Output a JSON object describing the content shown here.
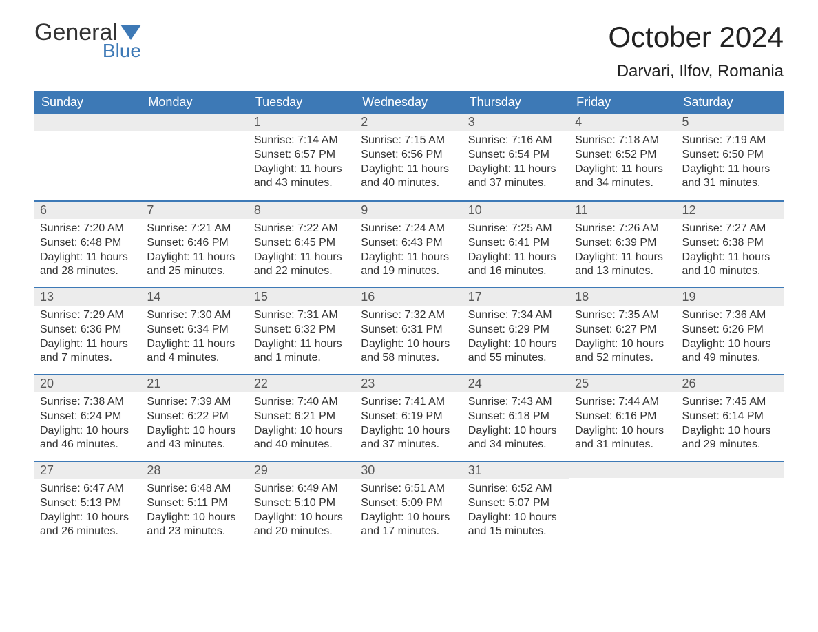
{
  "logo": {
    "top": "General",
    "bottom": "Blue",
    "accent_color": "#3d79b6"
  },
  "title": "October 2024",
  "location": "Darvari, Ilfov, Romania",
  "colors": {
    "header_bg": "#3d79b6",
    "header_text": "#ffffff",
    "daynum_bg": "#ececec",
    "border_top": "#3d79b6",
    "body_text": "#333333",
    "page_bg": "#ffffff"
  },
  "weekdays": [
    "Sunday",
    "Monday",
    "Tuesday",
    "Wednesday",
    "Thursday",
    "Friday",
    "Saturday"
  ],
  "labels": {
    "sunrise": "Sunrise:",
    "sunset": "Sunset:",
    "daylight": "Daylight:"
  },
  "weeks": [
    [
      null,
      null,
      {
        "n": "1",
        "sunrise": "7:14 AM",
        "sunset": "6:57 PM",
        "daylight": "11 hours and 43 minutes."
      },
      {
        "n": "2",
        "sunrise": "7:15 AM",
        "sunset": "6:56 PM",
        "daylight": "11 hours and 40 minutes."
      },
      {
        "n": "3",
        "sunrise": "7:16 AM",
        "sunset": "6:54 PM",
        "daylight": "11 hours and 37 minutes."
      },
      {
        "n": "4",
        "sunrise": "7:18 AM",
        "sunset": "6:52 PM",
        "daylight": "11 hours and 34 minutes."
      },
      {
        "n": "5",
        "sunrise": "7:19 AM",
        "sunset": "6:50 PM",
        "daylight": "11 hours and 31 minutes."
      }
    ],
    [
      {
        "n": "6",
        "sunrise": "7:20 AM",
        "sunset": "6:48 PM",
        "daylight": "11 hours and 28 minutes."
      },
      {
        "n": "7",
        "sunrise": "7:21 AM",
        "sunset": "6:46 PM",
        "daylight": "11 hours and 25 minutes."
      },
      {
        "n": "8",
        "sunrise": "7:22 AM",
        "sunset": "6:45 PM",
        "daylight": "11 hours and 22 minutes."
      },
      {
        "n": "9",
        "sunrise": "7:24 AM",
        "sunset": "6:43 PM",
        "daylight": "11 hours and 19 minutes."
      },
      {
        "n": "10",
        "sunrise": "7:25 AM",
        "sunset": "6:41 PM",
        "daylight": "11 hours and 16 minutes."
      },
      {
        "n": "11",
        "sunrise": "7:26 AM",
        "sunset": "6:39 PM",
        "daylight": "11 hours and 13 minutes."
      },
      {
        "n": "12",
        "sunrise": "7:27 AM",
        "sunset": "6:38 PM",
        "daylight": "11 hours and 10 minutes."
      }
    ],
    [
      {
        "n": "13",
        "sunrise": "7:29 AM",
        "sunset": "6:36 PM",
        "daylight": "11 hours and 7 minutes."
      },
      {
        "n": "14",
        "sunrise": "7:30 AM",
        "sunset": "6:34 PM",
        "daylight": "11 hours and 4 minutes."
      },
      {
        "n": "15",
        "sunrise": "7:31 AM",
        "sunset": "6:32 PM",
        "daylight": "11 hours and 1 minute."
      },
      {
        "n": "16",
        "sunrise": "7:32 AM",
        "sunset": "6:31 PM",
        "daylight": "10 hours and 58 minutes."
      },
      {
        "n": "17",
        "sunrise": "7:34 AM",
        "sunset": "6:29 PM",
        "daylight": "10 hours and 55 minutes."
      },
      {
        "n": "18",
        "sunrise": "7:35 AM",
        "sunset": "6:27 PM",
        "daylight": "10 hours and 52 minutes."
      },
      {
        "n": "19",
        "sunrise": "7:36 AM",
        "sunset": "6:26 PM",
        "daylight": "10 hours and 49 minutes."
      }
    ],
    [
      {
        "n": "20",
        "sunrise": "7:38 AM",
        "sunset": "6:24 PM",
        "daylight": "10 hours and 46 minutes."
      },
      {
        "n": "21",
        "sunrise": "7:39 AM",
        "sunset": "6:22 PM",
        "daylight": "10 hours and 43 minutes."
      },
      {
        "n": "22",
        "sunrise": "7:40 AM",
        "sunset": "6:21 PM",
        "daylight": "10 hours and 40 minutes."
      },
      {
        "n": "23",
        "sunrise": "7:41 AM",
        "sunset": "6:19 PM",
        "daylight": "10 hours and 37 minutes."
      },
      {
        "n": "24",
        "sunrise": "7:43 AM",
        "sunset": "6:18 PM",
        "daylight": "10 hours and 34 minutes."
      },
      {
        "n": "25",
        "sunrise": "7:44 AM",
        "sunset": "6:16 PM",
        "daylight": "10 hours and 31 minutes."
      },
      {
        "n": "26",
        "sunrise": "7:45 AM",
        "sunset": "6:14 PM",
        "daylight": "10 hours and 29 minutes."
      }
    ],
    [
      {
        "n": "27",
        "sunrise": "6:47 AM",
        "sunset": "5:13 PM",
        "daylight": "10 hours and 26 minutes."
      },
      {
        "n": "28",
        "sunrise": "6:48 AM",
        "sunset": "5:11 PM",
        "daylight": "10 hours and 23 minutes."
      },
      {
        "n": "29",
        "sunrise": "6:49 AM",
        "sunset": "5:10 PM",
        "daylight": "10 hours and 20 minutes."
      },
      {
        "n": "30",
        "sunrise": "6:51 AM",
        "sunset": "5:09 PM",
        "daylight": "10 hours and 17 minutes."
      },
      {
        "n": "31",
        "sunrise": "6:52 AM",
        "sunset": "5:07 PM",
        "daylight": "10 hours and 15 minutes."
      },
      null,
      null
    ]
  ]
}
